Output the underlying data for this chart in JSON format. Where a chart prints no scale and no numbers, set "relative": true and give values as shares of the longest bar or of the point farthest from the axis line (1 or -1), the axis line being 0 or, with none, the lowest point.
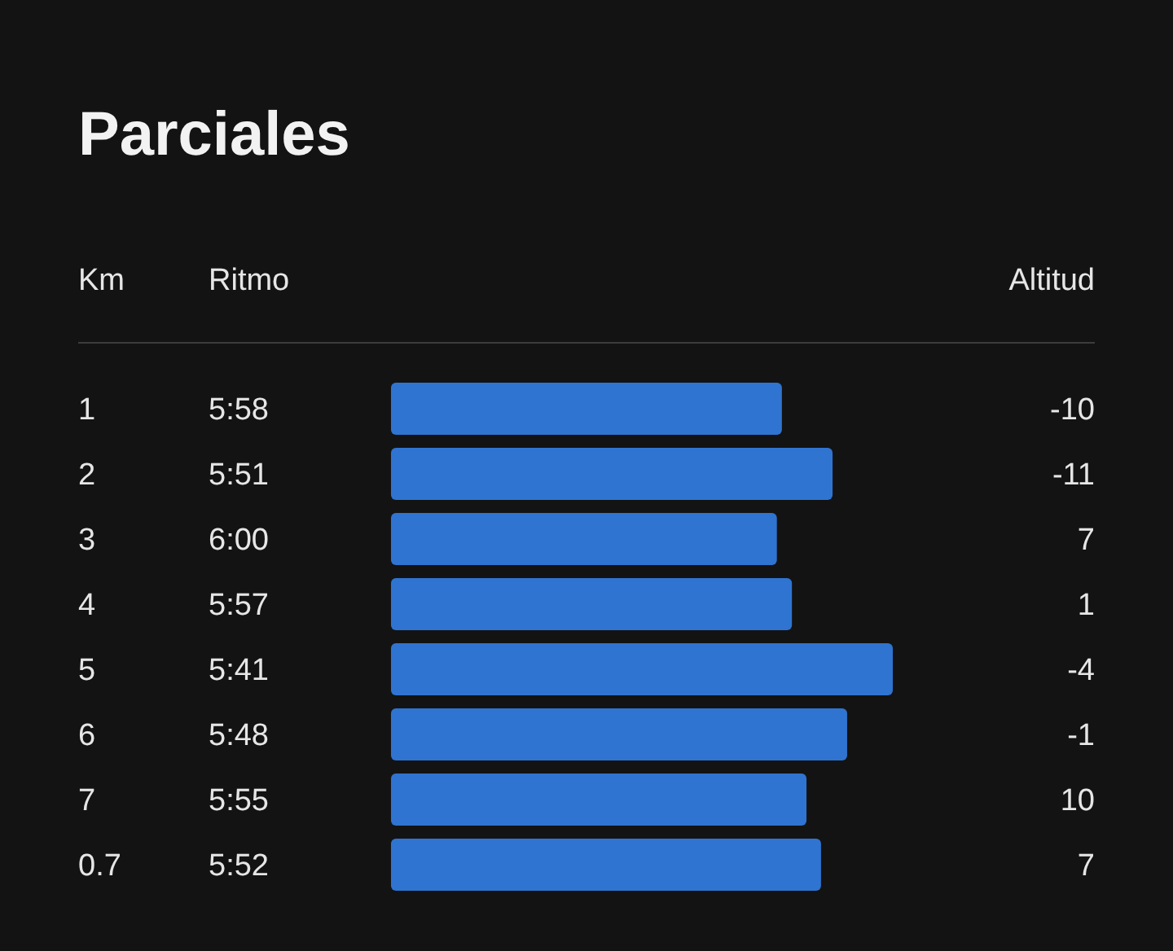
{
  "chart_data": {
    "type": "bar",
    "orientation": "horizontal",
    "relative": true,
    "title": "Parciales",
    "ylabel": "Km",
    "xlabel": "Ritmo",
    "y2label": "Altitud",
    "categories": [
      "1",
      "2",
      "3",
      "4",
      "5",
      "6",
      "7",
      "0.7"
    ],
    "values": [
      0.779,
      0.88,
      0.769,
      0.799,
      1,
      0.909,
      0.828,
      0.857
    ],
    "color": "#2f74d0",
    "annotations": [
      "5:58",
      "5:51",
      "6:00",
      "5:57",
      "5:41",
      "5:48",
      "5:55",
      "5:52",
      "-10",
      "-11",
      "7",
      "1",
      "-4",
      "-1",
      "10",
      "7"
    ]
  }
}
